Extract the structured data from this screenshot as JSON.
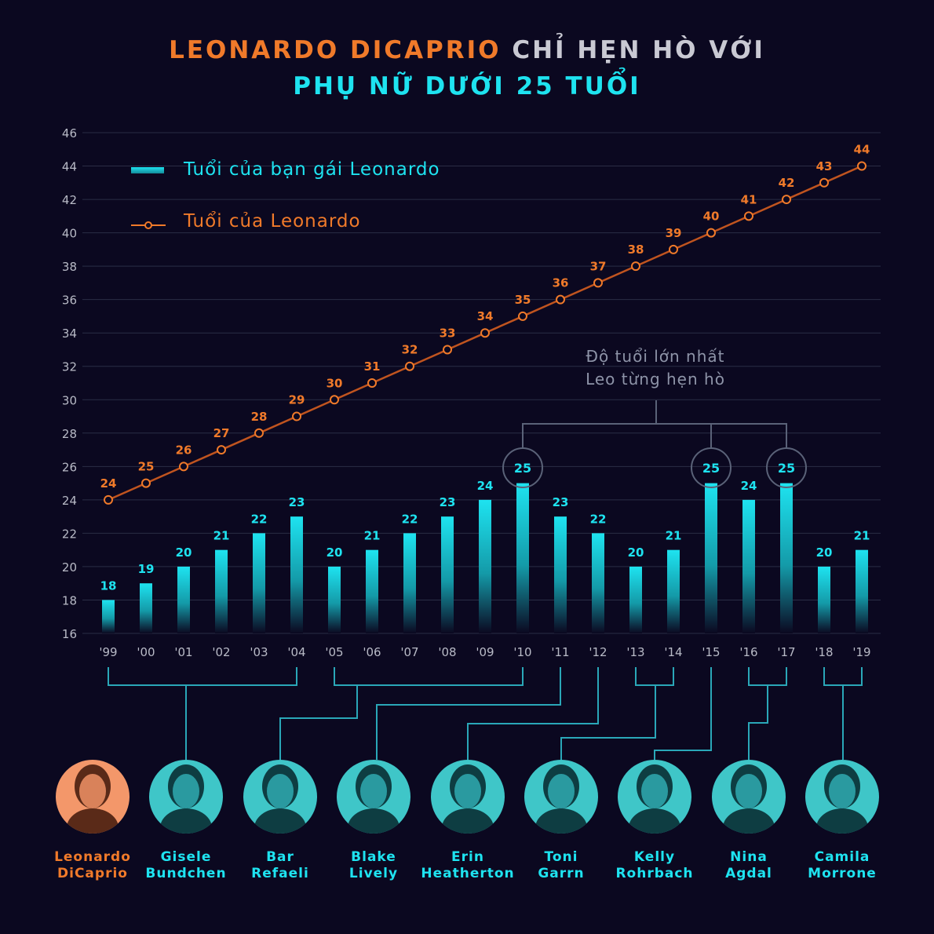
{
  "title": {
    "part1": "LEONARDO DICAPRIO",
    "part2": " CHỈ HẸN HÒ VỚI",
    "line2": "PHỤ NỮ DƯỚI 25 TUỔI"
  },
  "annotation": {
    "line1": "Độ tuổi lớn nhất",
    "line2": "Leo từng hẹn hò"
  },
  "colors": {
    "background": "#0b0820",
    "girlfriend": "#1ee3f0",
    "leonardo": "#f07a2a",
    "grid": "#2a2d45",
    "connector": "#2aa7b8"
  },
  "chart_data": {
    "type": "bar+line",
    "categories": [
      "'99",
      "'00",
      "'01",
      "'02",
      "'03",
      "'04",
      "'05",
      "'06",
      "'07",
      "'08",
      "'09",
      "'10",
      "'11",
      "'12",
      "'13",
      "'14",
      "'15",
      "'16",
      "'17",
      "'18",
      "'19"
    ],
    "ylim": [
      16,
      46
    ],
    "yticks": [
      16,
      18,
      20,
      22,
      24,
      26,
      28,
      30,
      32,
      34,
      36,
      38,
      40,
      42,
      44,
      46
    ],
    "grid": true,
    "legend_position": "top-left",
    "series": [
      {
        "name": "Tuổi của bạn gái Leonardo",
        "type": "bar",
        "values": [
          18,
          19,
          20,
          21,
          22,
          23,
          20,
          21,
          22,
          23,
          24,
          25,
          23,
          22,
          20,
          21,
          25,
          24,
          25,
          20,
          21
        ]
      },
      {
        "name": "Tuổi của Leonardo",
        "type": "line",
        "values": [
          24,
          25,
          26,
          27,
          28,
          29,
          30,
          31,
          32,
          33,
          34,
          35,
          36,
          37,
          38,
          39,
          40,
          41,
          42,
          43,
          44
        ]
      }
    ],
    "highlighted_categories": [
      "'10",
      "'15",
      "'17"
    ]
  },
  "people": [
    {
      "first": "Leonardo",
      "last": "DiCaprio",
      "color": "#f07a2a"
    },
    {
      "first": "Gisele",
      "last": "Bundchen",
      "color": "#1ee3f0"
    },
    {
      "first": "Bar",
      "last": "Refaeli",
      "color": "#1ee3f0"
    },
    {
      "first": "Blake",
      "last": "Lively",
      "color": "#1ee3f0"
    },
    {
      "first": "Erin",
      "last": "Heatherton",
      "color": "#1ee3f0"
    },
    {
      "first": "Toni",
      "last": "Garrn",
      "color": "#1ee3f0"
    },
    {
      "first": "Kelly",
      "last": "Rohrbach",
      "color": "#1ee3f0"
    },
    {
      "first": "Nina",
      "last": "Agdal",
      "color": "#1ee3f0"
    },
    {
      "first": "Camila",
      "last": "Morrone",
      "color": "#1ee3f0"
    }
  ]
}
